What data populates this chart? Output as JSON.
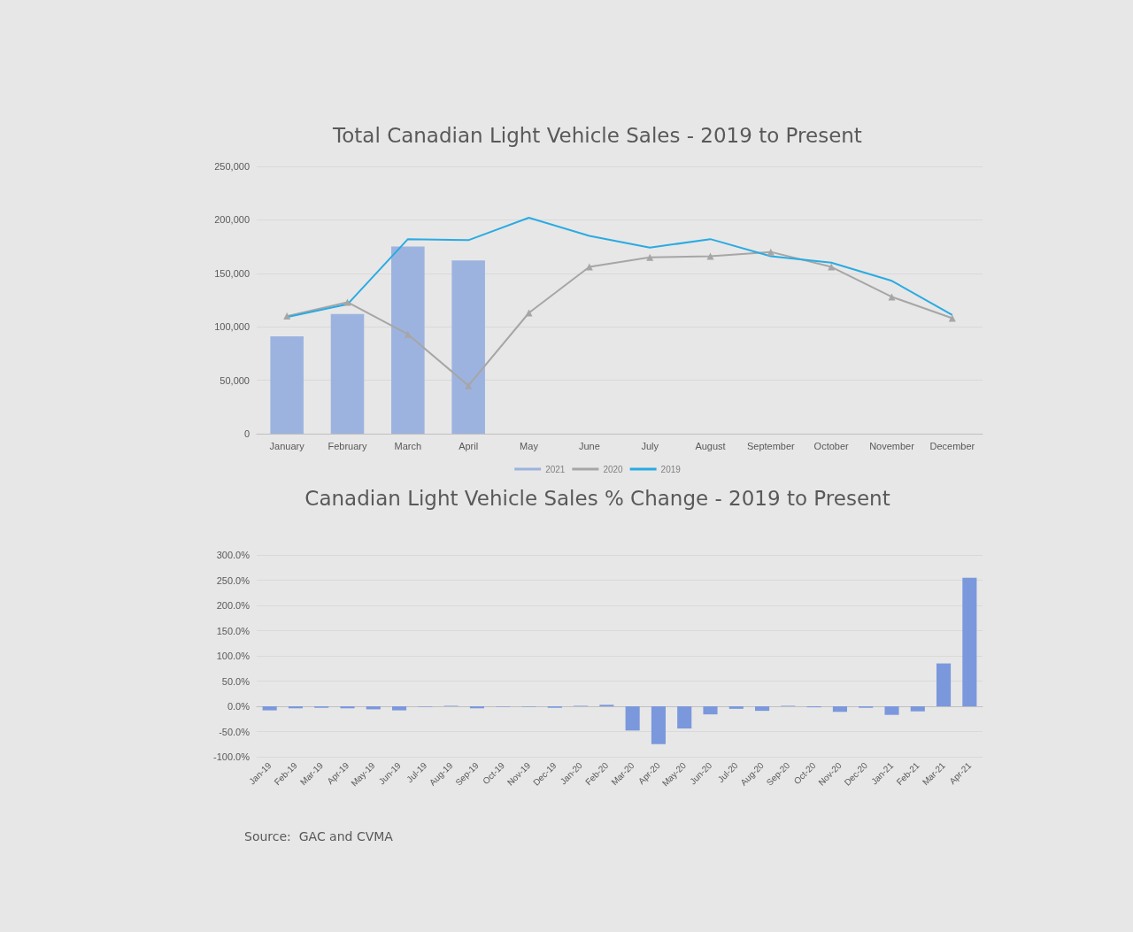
{
  "chart_data": [
    {
      "type": "bar",
      "title": "Total Canadian Light Vehicle Sales - 2019 to Present",
      "categories": [
        "January",
        "February",
        "March",
        "April",
        "May",
        "June",
        "July",
        "August",
        "September",
        "October",
        "November",
        "December"
      ],
      "series": [
        {
          "name": "2021",
          "color": "#9db3df",
          "values": [
            91000,
            112000,
            175000,
            162000,
            null,
            null,
            null,
            null,
            null,
            null,
            null,
            null
          ]
        },
        {
          "name": "2020",
          "type": "line",
          "color": "#a6a6a6",
          "marker": "triangle",
          "values": [
            110000,
            123000,
            93000,
            45000,
            113000,
            156000,
            165000,
            166000,
            170000,
            156000,
            128000,
            108000
          ]
        },
        {
          "name": "2019",
          "type": "line",
          "color": "#29abe2",
          "marker": "none",
          "values": [
            109000,
            121000,
            182000,
            181000,
            202000,
            185000,
            174000,
            182000,
            166000,
            160000,
            143000,
            111000
          ]
        }
      ],
      "ylim": [
        0,
        250000
      ],
      "yticks": [
        {
          "value": 0,
          "label": "0"
        },
        {
          "value": 50000,
          "label": "50,000"
        },
        {
          "value": 100000,
          "label": "100,000"
        },
        {
          "value": 150000,
          "label": "150,000"
        },
        {
          "value": 200000,
          "label": "200,000"
        },
        {
          "value": 250000,
          "label": "250,000"
        }
      ],
      "grid": "y",
      "legend": "bottom"
    },
    {
      "type": "bar",
      "title": "Canadian Light Vehicle Sales % Change - 2019 to Present",
      "categories": [
        "Jan-19",
        "Feb-19",
        "Mar-19",
        "Apr-19",
        "May-19",
        "Jun-19",
        "Jul-19",
        "Aug-19",
        "Sep-19",
        "Oct-19",
        "Nov-19",
        "Dec-19",
        "Jan-20",
        "Feb-20",
        "Mar-20",
        "Apr-20",
        "May-20",
        "Jun-20",
        "Jul-20",
        "Aug-20",
        "Sep-20",
        "Oct-20",
        "Nov-20",
        "Dec-20",
        "Jan-21",
        "Feb-21",
        "Mar-21",
        "Apr-21"
      ],
      "series": [
        {
          "color": "#7b98dc",
          "values": [
            -8,
            -4,
            -3,
            -4,
            -6,
            -8,
            -1,
            1,
            -4,
            -1,
            -1,
            -3,
            1,
            3,
            -48,
            -75,
            -44,
            -16,
            -5,
            -9,
            1,
            -2,
            -11,
            -3,
            -17,
            -10,
            85,
            255
          ]
        }
      ],
      "ylim": [
        -100,
        300
      ],
      "yticks": [
        {
          "value": -100,
          "label": "-100.0%"
        },
        {
          "value": -50,
          "label": "-50.0%"
        },
        {
          "value": 0,
          "label": "0.0%"
        },
        {
          "value": 50,
          "label": "50.0%"
        },
        {
          "value": 100,
          "label": "100.0%"
        },
        {
          "value": 150,
          "label": "150.0%"
        },
        {
          "value": 200,
          "label": "200.0%"
        },
        {
          "value": 250,
          "label": "250.0%"
        },
        {
          "value": 300,
          "label": "300.0%"
        }
      ],
      "grid": "y",
      "legend": false,
      "annotations": [
        "Source:  GAC and CVMA"
      ]
    }
  ]
}
